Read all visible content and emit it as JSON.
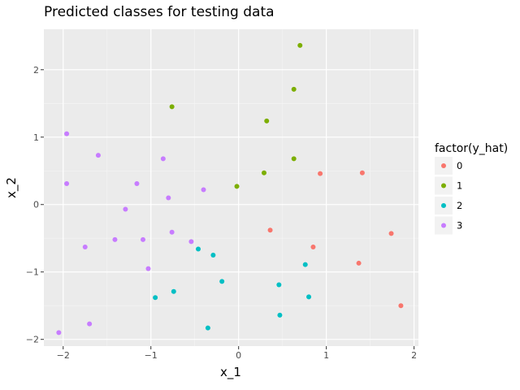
{
  "chart_data": {
    "type": "scatter",
    "title": "Predicted classes for testing data",
    "xlabel": "x_1",
    "ylabel": "x_2",
    "xlim": [
      -2.22,
      2.05
    ],
    "ylim": [
      -2.1,
      2.6
    ],
    "x_ticks": [
      -2,
      -1,
      0,
      1,
      2
    ],
    "y_ticks": [
      -2,
      -1,
      0,
      1,
      2
    ],
    "x_tick_labels": [
      "−2",
      "−1",
      "0",
      "1",
      "2"
    ],
    "y_tick_labels": [
      "−2",
      "−1",
      "0",
      "1",
      "2"
    ],
    "grid": true,
    "panel_background": "#ebebeb",
    "legend": {
      "title": "factor(y_hat)",
      "placement": "right"
    },
    "series": [
      {
        "name": "0",
        "color": "#F8766D",
        "points": [
          {
            "x": 0.93,
            "y": 0.46
          },
          {
            "x": 1.41,
            "y": 0.47
          },
          {
            "x": 0.36,
            "y": -0.38
          },
          {
            "x": 0.85,
            "y": -0.63
          },
          {
            "x": 1.74,
            "y": -0.43
          },
          {
            "x": 1.37,
            "y": -0.87
          },
          {
            "x": 1.85,
            "y": -1.5
          }
        ]
      },
      {
        "name": "1",
        "color": "#7CAE00",
        "points": [
          {
            "x": 0.7,
            "y": 2.36
          },
          {
            "x": 0.63,
            "y": 1.71
          },
          {
            "x": -0.76,
            "y": 1.45
          },
          {
            "x": 0.32,
            "y": 1.24
          },
          {
            "x": 0.63,
            "y": 0.68
          },
          {
            "x": 0.29,
            "y": 0.47
          },
          {
            "x": -0.02,
            "y": 0.27
          }
        ]
      },
      {
        "name": "2",
        "color": "#00BFC4",
        "points": [
          {
            "x": -0.46,
            "y": -0.66
          },
          {
            "x": -0.29,
            "y": -0.75
          },
          {
            "x": -0.19,
            "y": -1.14
          },
          {
            "x": -0.74,
            "y": -1.29
          },
          {
            "x": -0.95,
            "y": -1.38
          },
          {
            "x": -0.35,
            "y": -1.83
          },
          {
            "x": 0.46,
            "y": -1.19
          },
          {
            "x": 0.76,
            "y": -0.89
          },
          {
            "x": 0.8,
            "y": -1.37
          },
          {
            "x": 0.47,
            "y": -1.64
          }
        ]
      },
      {
        "name": "3",
        "color": "#C77CFF",
        "points": [
          {
            "x": -1.96,
            "y": 1.05
          },
          {
            "x": -1.6,
            "y": 0.73
          },
          {
            "x": -1.96,
            "y": 0.31
          },
          {
            "x": -0.86,
            "y": 0.68
          },
          {
            "x": -1.16,
            "y": 0.31
          },
          {
            "x": -0.8,
            "y": 0.1
          },
          {
            "x": -0.4,
            "y": 0.22
          },
          {
            "x": -1.29,
            "y": -0.07
          },
          {
            "x": -1.75,
            "y": -0.63
          },
          {
            "x": -1.41,
            "y": -0.52
          },
          {
            "x": -1.09,
            "y": -0.52
          },
          {
            "x": -0.76,
            "y": -0.41
          },
          {
            "x": -0.54,
            "y": -0.55
          },
          {
            "x": -1.03,
            "y": -0.95
          },
          {
            "x": -1.7,
            "y": -1.77
          },
          {
            "x": -2.05,
            "y": -1.9
          }
        ]
      }
    ]
  }
}
